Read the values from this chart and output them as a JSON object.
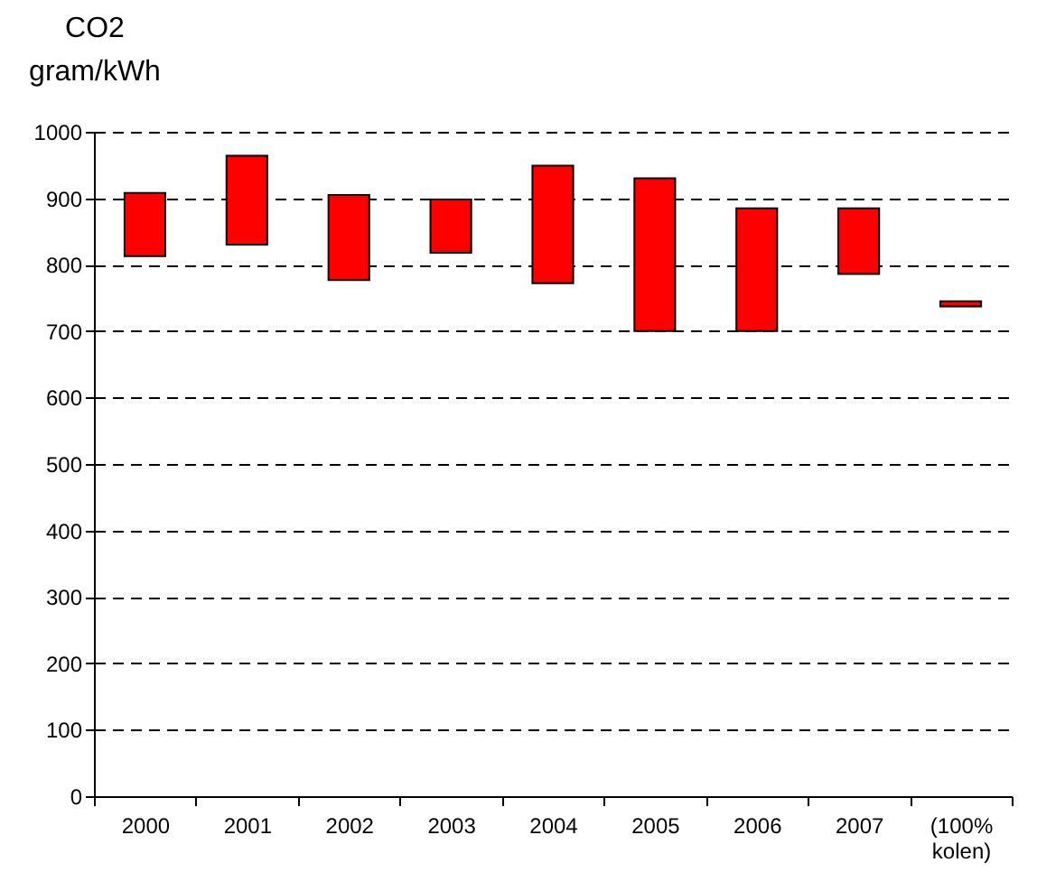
{
  "chart_data": {
    "type": "bar",
    "ylabel": "CO2 gram/kWh",
    "categories": [
      "2000",
      "2001",
      "2002",
      "2003",
      "2004",
      "2005",
      "2006",
      "2007",
      "(100% kolen)"
    ],
    "base": [
      813,
      830,
      777,
      818,
      772,
      700,
      700,
      786,
      737
    ],
    "values": [
      95,
      134,
      128,
      80,
      177,
      230,
      185,
      99,
      8
    ],
    "color": "#ff0000",
    "ylim": [
      0,
      1000
    ],
    "yticks": [
      0,
      100,
      200,
      300,
      400,
      500,
      600,
      700,
      800,
      900,
      1000
    ],
    "grid": "y",
    "line_style": "dashed"
  }
}
